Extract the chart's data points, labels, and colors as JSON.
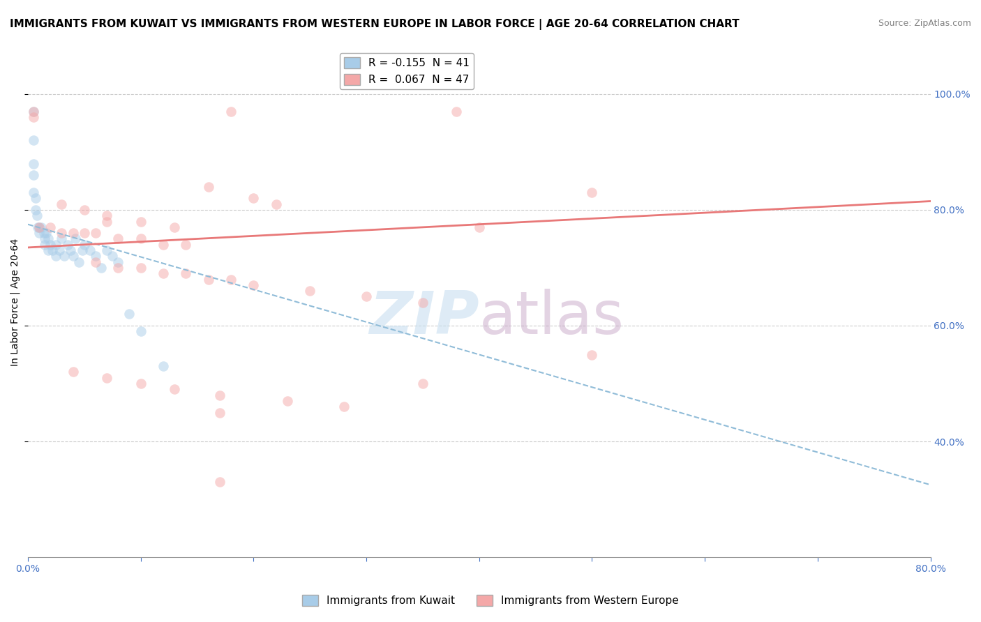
{
  "title": "IMMIGRANTS FROM KUWAIT VS IMMIGRANTS FROM WESTERN EUROPE IN LABOR FORCE | AGE 20-64 CORRELATION CHART",
  "source": "Source: ZipAtlas.com",
  "ylabel": "In Labor Force | Age 20-64",
  "legend_entry1_label": "R = -0.155  N = 41",
  "legend_entry2_label": "R =  0.067  N = 47",
  "legend_entry1_color": "#a8cce8",
  "legend_entry2_color": "#f4a8a8",
  "xlim": [
    0.0,
    0.8
  ],
  "ylim": [
    0.2,
    1.08
  ],
  "yticks_right": [
    0.4,
    0.6,
    0.8,
    1.0
  ],
  "xticks": [
    0.0,
    0.1,
    0.2,
    0.3,
    0.4,
    0.5,
    0.6,
    0.7,
    0.8
  ],
  "gridcolor": "#cccccc",
  "background_color": "#ffffff",
  "kuwait_scatter_x": [
    0.005,
    0.005,
    0.005,
    0.005,
    0.005,
    0.007,
    0.007,
    0.008,
    0.009,
    0.01,
    0.01,
    0.012,
    0.014,
    0.015,
    0.015,
    0.016,
    0.018,
    0.018,
    0.02,
    0.022,
    0.025,
    0.025,
    0.028,
    0.03,
    0.032,
    0.035,
    0.038,
    0.04,
    0.042,
    0.045,
    0.048,
    0.05,
    0.055,
    0.06,
    0.065,
    0.07,
    0.075,
    0.08,
    0.09,
    0.1,
    0.12
  ],
  "kuwait_scatter_y": [
    0.97,
    0.92,
    0.88,
    0.86,
    0.83,
    0.82,
    0.8,
    0.79,
    0.77,
    0.77,
    0.76,
    0.77,
    0.76,
    0.75,
    0.74,
    0.76,
    0.75,
    0.73,
    0.74,
    0.73,
    0.74,
    0.72,
    0.73,
    0.75,
    0.72,
    0.74,
    0.73,
    0.72,
    0.75,
    0.71,
    0.73,
    0.74,
    0.73,
    0.72,
    0.7,
    0.73,
    0.72,
    0.71,
    0.62,
    0.59,
    0.53
  ],
  "western_europe_scatter_x": [
    0.005,
    0.005,
    0.18,
    0.38,
    0.01,
    0.02,
    0.03,
    0.04,
    0.05,
    0.06,
    0.07,
    0.08,
    0.1,
    0.12,
    0.14,
    0.16,
    0.2,
    0.22,
    0.03,
    0.05,
    0.07,
    0.1,
    0.13,
    0.06,
    0.08,
    0.1,
    0.12,
    0.14,
    0.16,
    0.18,
    0.2,
    0.25,
    0.3,
    0.35,
    0.4,
    0.5,
    0.04,
    0.07,
    0.1,
    0.13,
    0.17,
    0.23,
    0.28,
    0.17,
    0.17,
    0.5,
    0.35
  ],
  "western_europe_scatter_y": [
    0.97,
    0.96,
    0.97,
    0.97,
    0.77,
    0.77,
    0.76,
    0.76,
    0.76,
    0.76,
    0.78,
    0.75,
    0.75,
    0.74,
    0.74,
    0.84,
    0.82,
    0.81,
    0.81,
    0.8,
    0.79,
    0.78,
    0.77,
    0.71,
    0.7,
    0.7,
    0.69,
    0.69,
    0.68,
    0.68,
    0.67,
    0.66,
    0.65,
    0.64,
    0.77,
    0.55,
    0.52,
    0.51,
    0.5,
    0.49,
    0.48,
    0.47,
    0.46,
    0.33,
    0.45,
    0.83,
    0.5
  ],
  "kuwait_trendline_x": [
    0.0,
    0.8
  ],
  "kuwait_trendline_y": [
    0.775,
    0.325
  ],
  "western_europe_trendline_x": [
    0.0,
    0.8
  ],
  "western_europe_trendline_y": [
    0.735,
    0.815
  ],
  "title_fontsize": 11,
  "source_fontsize": 9,
  "label_fontsize": 10,
  "tick_fontsize": 10,
  "legend_fontsize": 11,
  "dot_size": 110,
  "dot_alpha": 0.5,
  "kuwait_trendline_color": "#90bcd8",
  "western_europe_trendline_color": "#e87878"
}
